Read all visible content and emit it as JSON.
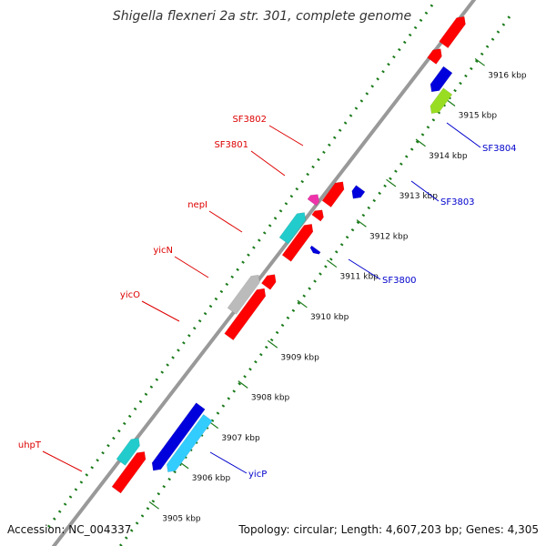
{
  "title": "Shigella flexneri 2a str. 301, complete genome",
  "footer": {
    "accession": "Accession: NC_004337",
    "topology": "Topology: circular; Length: 4,607,203 bp; Genes: 4,305"
  },
  "colors": {
    "backbone": "#999999",
    "forward_label": "#dd0000",
    "reverse_label": "#0000cc",
    "tick_dots": "#1a7a1a",
    "red": "#ff0000",
    "blue": "#0000dd",
    "cyan": "#33ccff",
    "teal": "#22cccc",
    "gray": "#bbbbbb",
    "magenta": "#ee33aa",
    "lime": "#99dd22"
  },
  "ticks": [
    {
      "pos": 3905,
      "label": "3905 kbp"
    },
    {
      "pos": 3906,
      "label": "3906 kbp"
    },
    {
      "pos": 3907,
      "label": "3907 kbp"
    },
    {
      "pos": 3908,
      "label": "3908 kbp"
    },
    {
      "pos": 3909,
      "label": "3909 kbp"
    },
    {
      "pos": 3910,
      "label": "3910 kbp"
    },
    {
      "pos": 3911,
      "label": "3911 kbp"
    },
    {
      "pos": 3912,
      "label": "3912 kbp"
    },
    {
      "pos": 3913,
      "label": "3913 kbp"
    },
    {
      "pos": 3914,
      "label": "3914 kbp"
    },
    {
      "pos": 3915,
      "label": "3915 kbp"
    },
    {
      "pos": 3916,
      "label": "3916 kbp"
    }
  ],
  "forward_features": [
    {
      "start": 3904.8,
      "end": 3905.75,
      "color": "red"
    },
    {
      "start": 3905.3,
      "end": 3905.9,
      "color": "teal"
    },
    {
      "start": 3908.6,
      "end": 3909.8,
      "color": "red"
    },
    {
      "start": 3909.05,
      "end": 3909.95,
      "color": "gray"
    },
    {
      "start": 3909.85,
      "end": 3910.15,
      "color": "red"
    },
    {
      "start": 3910.55,
      "end": 3911.4,
      "color": "red"
    },
    {
      "start": 3910.8,
      "end": 3911.5,
      "color": "teal"
    },
    {
      "start": 3911.55,
      "end": 3911.75,
      "color": "red"
    },
    {
      "start": 3911.75,
      "end": 3911.95,
      "color": "magenta"
    },
    {
      "start": 3911.9,
      "end": 3912.45,
      "color": "red"
    },
    {
      "start": 3915.45,
      "end": 3915.75,
      "color": "red"
    },
    {
      "start": 3915.85,
      "end": 3916.55,
      "color": "red"
    }
  ],
  "reverse_features": [
    {
      "start": 3905.55,
      "end": 3907.15,
      "color": "blue"
    },
    {
      "start": 3905.7,
      "end": 3907.05,
      "color": "cyan"
    },
    {
      "start": 3910.95,
      "end": 3911.05,
      "color": "blue"
    },
    {
      "start": 3912.3,
      "end": 3912.55,
      "color": "blue"
    },
    {
      "start": 3914.6,
      "end": 3915.15,
      "color": "lime"
    },
    {
      "start": 3914.95,
      "end": 3915.5,
      "color": "blue"
    }
  ],
  "gene_labels": [
    {
      "text": "SF3802",
      "strand": "forward"
    },
    {
      "text": "SF3801",
      "strand": "forward"
    },
    {
      "text": "nepI",
      "strand": "forward"
    },
    {
      "text": "yicN",
      "strand": "forward"
    },
    {
      "text": "yicO",
      "strand": "forward"
    },
    {
      "text": "uhpT",
      "strand": "forward"
    },
    {
      "text": "SF3804",
      "strand": "reverse"
    },
    {
      "text": "SF3803",
      "strand": "reverse"
    },
    {
      "text": "SF3800",
      "strand": "reverse"
    },
    {
      "text": "yicP",
      "strand": "reverse"
    }
  ]
}
